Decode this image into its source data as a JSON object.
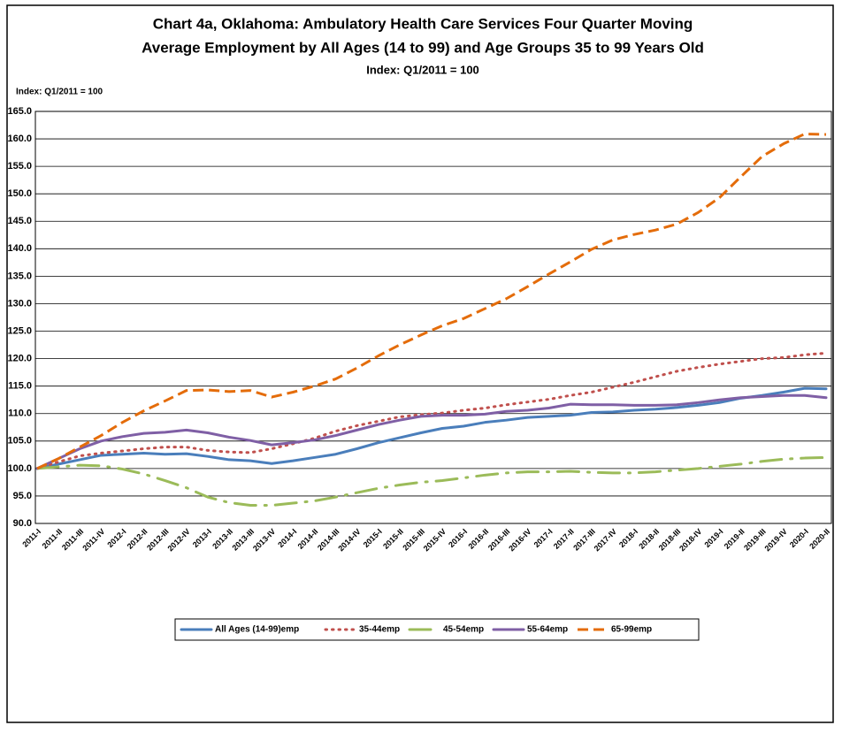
{
  "chart_data": {
    "type": "line",
    "title_lines": [
      "Chart 4a, Oklahoma: Ambulatory Health Care Services Four Quarter Moving",
      "Average Employment by All Ages (14 to 99) and Age Groups 35 to 99 Years Old"
    ],
    "subtitle": "Index: Q1/2011 = 100",
    "y_axis_label": "Index: Q1/2011 = 100",
    "categories": [
      "2011-I",
      "2011-II",
      "2011-III",
      "2011-IV",
      "2012-I",
      "2012-II",
      "2012-III",
      "2012-IV",
      "2013-I",
      "2013-II",
      "2013-III",
      "2013-IV",
      "2014-I",
      "2014-II",
      "2014-III",
      "2014-IV",
      "2015-I",
      "2015-II",
      "2015-III",
      "2015-IV",
      "2016-I",
      "2016-II",
      "2016-III",
      "2016-IV",
      "2017-I",
      "2017-II",
      "2017-III",
      "2017-IV",
      "2018-I",
      "2018-II",
      "2018-III",
      "2018-IV",
      "2019-I",
      "2019-II",
      "2019-III",
      "2019-IV",
      "2020-I",
      "2020-II"
    ],
    "ylim": [
      90,
      165
    ],
    "yticks": [
      {
        "value": 90,
        "label": "90.0"
      },
      {
        "value": 95,
        "label": "95.0"
      },
      {
        "value": 100,
        "label": "100.0"
      },
      {
        "value": 105,
        "label": "105.0"
      },
      {
        "value": 110,
        "label": "110.0"
      },
      {
        "value": 115,
        "label": "115.0"
      },
      {
        "value": 120,
        "label": "120.0"
      },
      {
        "value": 125,
        "label": "125.0"
      },
      {
        "value": 130,
        "label": "130.0"
      },
      {
        "value": 135,
        "label": "135.0"
      },
      {
        "value": 140,
        "label": "140.0"
      },
      {
        "value": 145,
        "label": "145.0"
      },
      {
        "value": 150,
        "label": "150.0"
      },
      {
        "value": 155,
        "label": "155.0"
      },
      {
        "value": 160,
        "label": "160.0"
      },
      {
        "value": 165,
        "label": "165.0"
      }
    ],
    "grid": true,
    "legend": "bottom",
    "series": [
      {
        "name": "All Ages (14-99)emp",
        "color": "#4a7ebb",
        "dash": "solid",
        "values": [
          100,
          100.8,
          101.6,
          102.4,
          102.6,
          102.8,
          102.6,
          102.7,
          102.2,
          101.6,
          101.4,
          100.9,
          101.4,
          102.0,
          102.6,
          103.6,
          104.7,
          105.6,
          106.5,
          107.3,
          107.7,
          108.4,
          108.8,
          109.3,
          109.5,
          109.7,
          110.2,
          110.3,
          110.6,
          110.8,
          111.1,
          111.5,
          112.0,
          112.8,
          113.3,
          113.9,
          114.6,
          114.5
        ]
      },
      {
        "name": "35-44emp",
        "color": "#c0504d",
        "dash": "dotted",
        "values": [
          100,
          101.2,
          102.3,
          102.8,
          103.2,
          103.6,
          103.9,
          103.9,
          103.3,
          103.0,
          102.9,
          103.6,
          104.5,
          105.5,
          106.8,
          107.8,
          108.6,
          109.4,
          109.8,
          110.1,
          110.6,
          111.0,
          111.6,
          112.1,
          112.6,
          113.3,
          113.9,
          114.8,
          115.7,
          116.7,
          117.7,
          118.4,
          119.0,
          119.5,
          120.0,
          120.2,
          120.7,
          121.0
        ]
      },
      {
        "name": "45-54emp",
        "color": "#9bbb59",
        "dash": "dashdot",
        "values": [
          100,
          100.3,
          100.6,
          100.5,
          99.9,
          99.0,
          97.8,
          96.5,
          94.8,
          93.8,
          93.3,
          93.3,
          93.7,
          94.1,
          94.8,
          95.6,
          96.4,
          97.0,
          97.5,
          97.8,
          98.3,
          98.8,
          99.2,
          99.4,
          99.4,
          99.5,
          99.3,
          99.2,
          99.2,
          99.4,
          99.7,
          100.0,
          100.4,
          100.8,
          101.3,
          101.7,
          101.9,
          102.0
        ]
      },
      {
        "name": "55-64emp",
        "color": "#7f5fa5",
        "dash": "solid",
        "values": [
          100,
          101.8,
          103.6,
          105.0,
          105.8,
          106.4,
          106.6,
          107.0,
          106.5,
          105.7,
          105.1,
          104.3,
          104.7,
          105.2,
          106.0,
          107.0,
          108.0,
          108.8,
          109.5,
          109.7,
          109.7,
          109.9,
          110.4,
          110.6,
          111.0,
          111.7,
          111.6,
          111.6,
          111.5,
          111.5,
          111.6,
          112.0,
          112.5,
          112.9,
          113.1,
          113.3,
          113.3,
          112.9
        ]
      },
      {
        "name": "65-99emp",
        "color": "#e46c0a",
        "dash": "dashed",
        "values": [
          100,
          101.8,
          103.9,
          106.0,
          108.4,
          110.5,
          112.3,
          114.2,
          114.3,
          114.0,
          114.2,
          113.0,
          113.9,
          115.0,
          116.3,
          118.3,
          120.5,
          122.5,
          124.3,
          126.0,
          127.3,
          129.1,
          130.9,
          133.1,
          135.4,
          137.6,
          139.9,
          141.6,
          142.6,
          143.4,
          144.5,
          146.6,
          149.3,
          153.1,
          156.8,
          159.1,
          160.9,
          160.8
        ]
      }
    ]
  }
}
